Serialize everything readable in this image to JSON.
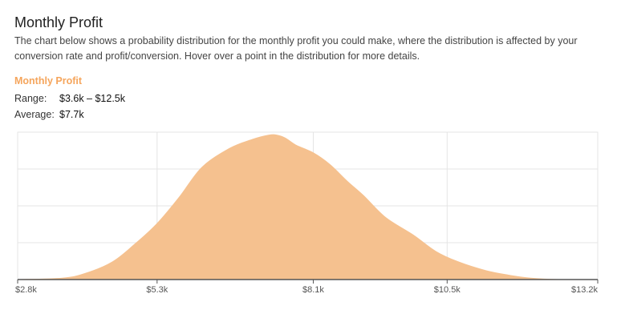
{
  "header": {
    "title": "Monthly Profit",
    "description": "The chart below shows a probability distribution for the monthly profit you could make, where the distribution is affected by your conversion rate and profit/conversion. Hover over a point in the distribution for more details."
  },
  "summary": {
    "series_label": "Monthly Profit",
    "range_label": "Range:",
    "range_value": "$3.6k – $12.5k",
    "average_label": "Average:",
    "average_value": "$7.7k"
  },
  "colors": {
    "accent": "#f5a55c",
    "fill": "#f5c18f",
    "grid": "#e4e4e4",
    "axis": "#555555"
  },
  "chart_data": {
    "type": "area",
    "title": "",
    "xlabel": "",
    "ylabel": "",
    "xlim": [
      2.8,
      13.2
    ],
    "ylim": [
      0,
      1
    ],
    "grid": true,
    "x_tick_labels": [
      "$2.8k",
      "$5.3k",
      "$8.1k",
      "$10.5k",
      "$13.2k"
    ],
    "x_tick_values": [
      2.8,
      5.3,
      8.1,
      10.5,
      13.2
    ],
    "series": [
      {
        "x": [
          2.8,
          3.6,
          4.0,
          4.5,
          4.9,
          5.3,
          5.7,
          6.1,
          6.6,
          7.0,
          7.3,
          7.45,
          7.6,
          7.8,
          8.1,
          8.4,
          8.7,
          9.0,
          9.4,
          9.9,
          10.3,
          10.7,
          11.2,
          11.6,
          12.0,
          12.5,
          13.2
        ],
        "y": [
          0,
          0.01,
          0.04,
          0.12,
          0.24,
          0.38,
          0.56,
          0.76,
          0.89,
          0.95,
          0.98,
          0.98,
          0.96,
          0.91,
          0.86,
          0.78,
          0.67,
          0.57,
          0.42,
          0.3,
          0.19,
          0.12,
          0.06,
          0.03,
          0.01,
          0,
          0
        ]
      }
    ]
  }
}
